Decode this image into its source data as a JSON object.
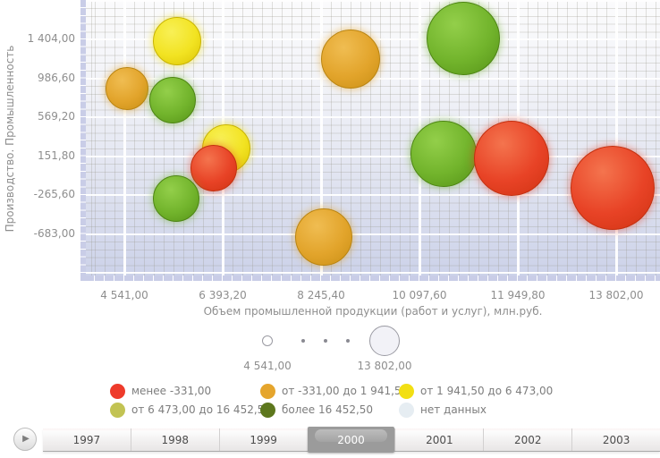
{
  "chart_data": {
    "type": "bubble",
    "title": "",
    "xlabel": "Объем  промышленной продукции (работ и услуг), млн.руб.",
    "ylabel": "Производство. Промышленность",
    "x_tick_values": [
      4541.0,
      6393.2,
      8245.4,
      10097.6,
      11949.8,
      13802.0
    ],
    "x_tick_labels": [
      "4 541,00",
      "6 393,20",
      "8 245,40",
      "10 097,60",
      "11 949,80",
      "13 802,00"
    ],
    "y_tick_values": [
      1404.0,
      986.6,
      569.2,
      151.8,
      -265.6,
      -683.0
    ],
    "y_tick_labels": [
      "1 404,00",
      "986,60",
      "569,20",
      "151,80",
      "-265,60",
      "-683,00"
    ],
    "extra_y_gridline_values": [
      1821.4,
      -1100.4
    ],
    "xlim": [
      3715,
      14645
    ],
    "ylim": [
      -1129,
      1826
    ],
    "grid": true,
    "legend_position": "bottom",
    "points": [
      {
        "x": 4591,
        "y": 875,
        "r": 24,
        "category": "orange"
      },
      {
        "x": 5534,
        "y": 1385,
        "r": 27,
        "category": "yellow"
      },
      {
        "x": 5450,
        "y": 752,
        "r": 26,
        "category": "green"
      },
      {
        "x": 6461,
        "y": 233,
        "r": 27,
        "category": "yellow"
      },
      {
        "x": 6225,
        "y": 22,
        "r": 26,
        "category": "red"
      },
      {
        "x": 5517,
        "y": -304,
        "r": 26,
        "category": "green"
      },
      {
        "x": 8296,
        "y": -717,
        "r": 32,
        "category": "orange"
      },
      {
        "x": 8801,
        "y": 1193,
        "r": 33,
        "category": "orange"
      },
      {
        "x": 10922,
        "y": 1414,
        "r": 41,
        "category": "green"
      },
      {
        "x": 10552,
        "y": 176,
        "r": 37,
        "category": "green"
      },
      {
        "x": 11832,
        "y": 128,
        "r": 42,
        "category": "red"
      },
      {
        "x": 13735,
        "y": -189,
        "r": 47,
        "category": "red"
      }
    ]
  },
  "size_legend": {
    "min_label": "4 541,00",
    "max_label": "13 802,00"
  },
  "legend": {
    "items": [
      {
        "key": "red",
        "label": "менее -331,00",
        "color": "#ee3b2b"
      },
      {
        "key": "orange",
        "label": "от -331,00 до 1 941,50",
        "color": "#e5a52d"
      },
      {
        "key": "yellow",
        "label": "от 1 941,50 до 6 473,00",
        "color": "#f2df14"
      },
      {
        "key": "olive",
        "label": "от 6 473,00 до 16 452,50",
        "color": "#c2c353"
      },
      {
        "key": "darkgreen",
        "label": "более 16 452,50",
        "color": "#5d771d"
      },
      {
        "key": "nodata",
        "label": "нет данных",
        "color": "#e6edf2"
      }
    ]
  },
  "timeline": {
    "play_icon": "▶",
    "years": [
      "1997",
      "1998",
      "1999",
      "2000",
      "2001",
      "2002",
      "2003"
    ],
    "selected_year": "2000"
  },
  "palette": {
    "red": {
      "hi": "#f4744e",
      "base": "#e84326",
      "dark": "#cf3212",
      "border": "#c3300f",
      "glow": "rgba(232,67,38,0.5)"
    },
    "orange": {
      "hi": "#f0bd52",
      "base": "#e2a42b",
      "dark": "#c98f15",
      "border": "#ba8410",
      "glow": "rgba(226,164,43,0.55)"
    },
    "yellow": {
      "hi": "#f8f056",
      "base": "#f2e322",
      "dark": "#dcc404",
      "border": "#c9b400",
      "glow": "rgba(242,227,34,0.6)"
    },
    "green": {
      "hi": "#93cf4a",
      "base": "#72b42c",
      "dark": "#569318",
      "border": "#4c8512",
      "glow": "rgba(114,180,44,0.5)"
    }
  }
}
